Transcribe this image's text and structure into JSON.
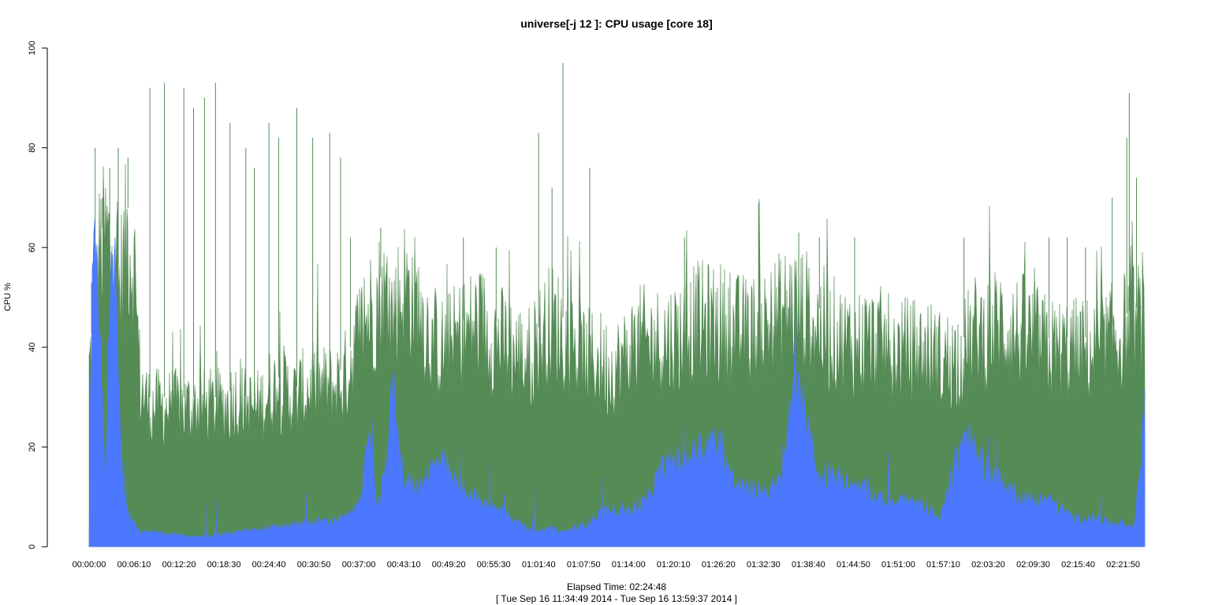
{
  "chart_data": {
    "type": "area",
    "title": "universe[-j 12  ]: CPU usage [core 18]",
    "ylabel": "CPU %",
    "xlabel": "Elapsed Time: 02:24:48",
    "subtitle": "[ Tue Sep 16 11:34:49 2014 - Tue Sep 16 13:59:37 2014 ]",
    "ylim": [
      0,
      100
    ],
    "yticks": [
      0,
      20,
      40,
      60,
      80,
      100
    ],
    "xlim_seconds": [
      0,
      8688
    ],
    "xticks": [
      {
        "label": "00:00:00",
        "s": 0
      },
      {
        "label": "00:06:10",
        "s": 370
      },
      {
        "label": "00:12:20",
        "s": 740
      },
      {
        "label": "00:18:30",
        "s": 1110
      },
      {
        "label": "00:24:40",
        "s": 1480
      },
      {
        "label": "00:30:50",
        "s": 1850
      },
      {
        "label": "00:37:00",
        "s": 2220
      },
      {
        "label": "00:43:10",
        "s": 2590
      },
      {
        "label": "00:49:20",
        "s": 2960
      },
      {
        "label": "00:55:30",
        "s": 3330
      },
      {
        "label": "01:01:40",
        "s": 3700
      },
      {
        "label": "01:07:50",
        "s": 4070
      },
      {
        "label": "01:14:00",
        "s": 4440
      },
      {
        "label": "01:20:10",
        "s": 4810
      },
      {
        "label": "01:26:20",
        "s": 5180
      },
      {
        "label": "01:32:30",
        "s": 5550
      },
      {
        "label": "01:38:40",
        "s": 5920
      },
      {
        "label": "01:44:50",
        "s": 6290
      },
      {
        "label": "01:51:00",
        "s": 6660
      },
      {
        "label": "01:57:10",
        "s": 7030
      },
      {
        "label": "02:03:20",
        "s": 7400
      },
      {
        "label": "02:09:30",
        "s": 7770
      },
      {
        "label": "02:15:40",
        "s": 8140
      },
      {
        "label": "02:21:50",
        "s": 8510
      }
    ],
    "grid": false,
    "series": [
      {
        "color": "#558b55",
        "points": [
          [
            0,
            38
          ],
          [
            30,
            45
          ],
          [
            90,
            63
          ],
          [
            150,
            66
          ],
          [
            200,
            62
          ],
          [
            250,
            55
          ],
          [
            320,
            68
          ],
          [
            380,
            58
          ],
          [
            420,
            35
          ],
          [
            500,
            30
          ],
          [
            600,
            30
          ],
          [
            700,
            30
          ],
          [
            800,
            30
          ],
          [
            900,
            30
          ],
          [
            1000,
            30
          ],
          [
            1100,
            30
          ],
          [
            1200,
            32
          ],
          [
            1300,
            30
          ],
          [
            1400,
            30
          ],
          [
            1500,
            34
          ],
          [
            1600,
            34
          ],
          [
            1700,
            32
          ],
          [
            1800,
            34
          ],
          [
            1900,
            34
          ],
          [
            2000,
            34
          ],
          [
            2100,
            36
          ],
          [
            2200,
            44
          ],
          [
            2300,
            50
          ],
          [
            2400,
            54
          ],
          [
            2500,
            50
          ],
          [
            2600,
            56
          ],
          [
            2700,
            52
          ],
          [
            2800,
            46
          ],
          [
            2900,
            42
          ],
          [
            3000,
            44
          ],
          [
            3100,
            46
          ],
          [
            3200,
            48
          ],
          [
            3300,
            46
          ],
          [
            3400,
            44
          ],
          [
            3500,
            42
          ],
          [
            3600,
            40
          ],
          [
            3700,
            44
          ],
          [
            3800,
            48
          ],
          [
            3900,
            46
          ],
          [
            4000,
            42
          ],
          [
            4100,
            40
          ],
          [
            4200,
            40
          ],
          [
            4300,
            38
          ],
          [
            4400,
            40
          ],
          [
            4500,
            44
          ],
          [
            4600,
            44
          ],
          [
            4700,
            44
          ],
          [
            4800,
            45
          ],
          [
            4900,
            46
          ],
          [
            5000,
            48
          ],
          [
            5100,
            48
          ],
          [
            5200,
            48
          ],
          [
            5300,
            46
          ],
          [
            5400,
            46
          ],
          [
            5500,
            46
          ],
          [
            5600,
            48
          ],
          [
            5700,
            50
          ],
          [
            5800,
            52
          ],
          [
            5900,
            50
          ],
          [
            6000,
            48
          ],
          [
            6100,
            46
          ],
          [
            6200,
            44
          ],
          [
            6300,
            44
          ],
          [
            6400,
            44
          ],
          [
            6500,
            44
          ],
          [
            6600,
            42
          ],
          [
            6700,
            42
          ],
          [
            6800,
            42
          ],
          [
            6900,
            42
          ],
          [
            7000,
            40
          ],
          [
            7100,
            40
          ],
          [
            7200,
            42
          ],
          [
            7300,
            46
          ],
          [
            7400,
            46
          ],
          [
            7500,
            48
          ],
          [
            7600,
            46
          ],
          [
            7700,
            46
          ],
          [
            7800,
            44
          ],
          [
            7900,
            42
          ],
          [
            8000,
            42
          ],
          [
            8100,
            42
          ],
          [
            8200,
            42
          ],
          [
            8300,
            42
          ],
          [
            8400,
            44
          ],
          [
            8500,
            46
          ],
          [
            8600,
            48
          ],
          [
            8688,
            48
          ]
        ],
        "peaks": [
          [
            20,
            53
          ],
          [
            50,
            80
          ],
          [
            110,
            70
          ],
          [
            170,
            76
          ],
          [
            240,
            80
          ],
          [
            320,
            78
          ],
          [
            500,
            92
          ],
          [
            620,
            93
          ],
          [
            780,
            92
          ],
          [
            860,
            88
          ],
          [
            950,
            90
          ],
          [
            1040,
            93
          ],
          [
            1160,
            85
          ],
          [
            1290,
            80
          ],
          [
            1360,
            76
          ],
          [
            1480,
            85
          ],
          [
            1560,
            82
          ],
          [
            1710,
            88
          ],
          [
            1840,
            82
          ],
          [
            1980,
            83
          ],
          [
            2070,
            78
          ],
          [
            2150,
            62
          ],
          [
            2400,
            64
          ],
          [
            3080,
            62
          ],
          [
            3350,
            60
          ],
          [
            3700,
            83
          ],
          [
            3810,
            72
          ],
          [
            3900,
            97
          ],
          [
            4120,
            76
          ],
          [
            4900,
            62
          ],
          [
            5510,
            69
          ],
          [
            5840,
            63
          ],
          [
            6010,
            62
          ],
          [
            6300,
            62
          ],
          [
            7200,
            62
          ],
          [
            7900,
            62
          ],
          [
            8050,
            62
          ],
          [
            8200,
            60
          ],
          [
            8420,
            70
          ],
          [
            8540,
            82
          ],
          [
            8560,
            91
          ],
          [
            8620,
            74
          ]
        ]
      },
      {
        "color": "#4c78ff",
        "points": [
          [
            0,
            0
          ],
          [
            10,
            38
          ],
          [
            40,
            60
          ],
          [
            70,
            50
          ],
          [
            100,
            38
          ],
          [
            130,
            15
          ],
          [
            160,
            40
          ],
          [
            190,
            58
          ],
          [
            220,
            56
          ],
          [
            260,
            20
          ],
          [
            300,
            10
          ],
          [
            350,
            6
          ],
          [
            420,
            3
          ],
          [
            600,
            3
          ],
          [
            900,
            2
          ],
          [
            1200,
            3
          ],
          [
            1500,
            4
          ],
          [
            1800,
            5
          ],
          [
            2100,
            6
          ],
          [
            2200,
            8
          ],
          [
            2280,
            18
          ],
          [
            2330,
            24
          ],
          [
            2360,
            8
          ],
          [
            2400,
            10
          ],
          [
            2450,
            20
          ],
          [
            2500,
            34
          ],
          [
            2550,
            22
          ],
          [
            2600,
            14
          ],
          [
            2700,
            12
          ],
          [
            2800,
            16
          ],
          [
            2900,
            18
          ],
          [
            3000,
            14
          ],
          [
            3100,
            12
          ],
          [
            3200,
            10
          ],
          [
            3300,
            8
          ],
          [
            3400,
            8
          ],
          [
            3500,
            6
          ],
          [
            3600,
            4
          ],
          [
            3700,
            3
          ],
          [
            3800,
            4
          ],
          [
            3900,
            3
          ],
          [
            4000,
            4
          ],
          [
            4100,
            5
          ],
          [
            4200,
            7
          ],
          [
            4300,
            8
          ],
          [
            4400,
            8
          ],
          [
            4500,
            8
          ],
          [
            4600,
            10
          ],
          [
            4700,
            16
          ],
          [
            4800,
            18
          ],
          [
            4900,
            18
          ],
          [
            5000,
            20
          ],
          [
            5100,
            22
          ],
          [
            5200,
            22
          ],
          [
            5300,
            14
          ],
          [
            5400,
            12
          ],
          [
            5500,
            12
          ],
          [
            5600,
            12
          ],
          [
            5700,
            14
          ],
          [
            5800,
            36
          ],
          [
            5850,
            30
          ],
          [
            5900,
            30
          ],
          [
            6000,
            14
          ],
          [
            6100,
            16
          ],
          [
            6200,
            14
          ],
          [
            6300,
            12
          ],
          [
            6400,
            12
          ],
          [
            6500,
            10
          ],
          [
            6600,
            10
          ],
          [
            6700,
            10
          ],
          [
            6800,
            9
          ],
          [
            6900,
            8
          ],
          [
            7000,
            6
          ],
          [
            7100,
            14
          ],
          [
            7200,
            24
          ],
          [
            7300,
            20
          ],
          [
            7400,
            16
          ],
          [
            7500,
            14
          ],
          [
            7600,
            12
          ],
          [
            7700,
            10
          ],
          [
            7800,
            10
          ],
          [
            7900,
            10
          ],
          [
            8000,
            8
          ],
          [
            8100,
            6
          ],
          [
            8200,
            6
          ],
          [
            8300,
            6
          ],
          [
            8400,
            5
          ],
          [
            8500,
            5
          ],
          [
            8600,
            4
          ],
          [
            8688,
            28
          ]
        ]
      }
    ]
  }
}
